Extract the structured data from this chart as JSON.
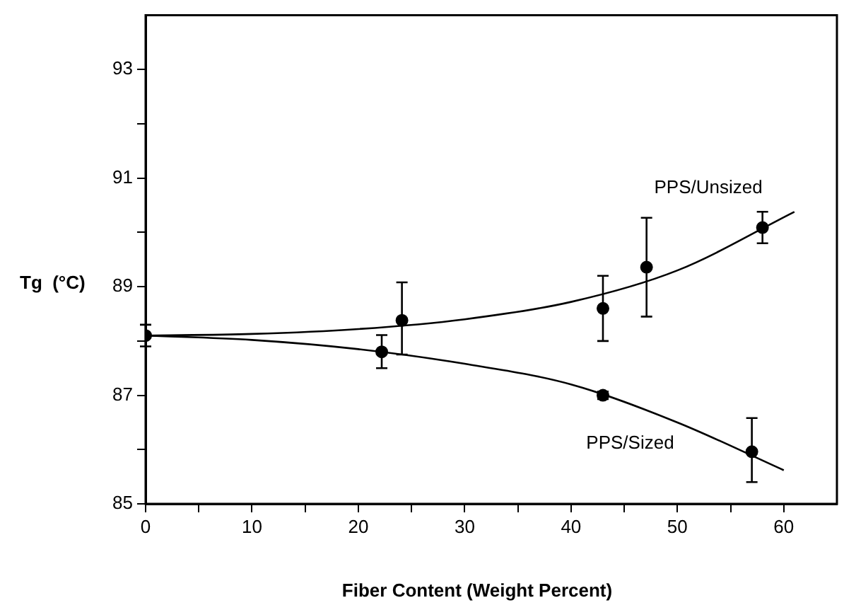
{
  "chart_data": {
    "type": "scatter",
    "xlabel": "Fiber Content (Weight Percent)",
    "ylabel": "Tg  (°C)",
    "xlim": [
      0,
      65
    ],
    "ylim": [
      85,
      94
    ],
    "xticks": [
      0,
      {
        "value": 5,
        "label": null
      },
      10,
      {
        "value": 15,
        "label": null
      },
      20,
      {
        "value": 25,
        "label": null
      },
      30,
      {
        "value": 35,
        "label": null
      },
      40,
      {
        "value": 45,
        "label": null
      },
      50,
      {
        "value": 55,
        "label": null
      },
      60
    ],
    "yticks": [
      85,
      {
        "value": 86,
        "label": null
      },
      87,
      {
        "value": 88,
        "label": null
      },
      89,
      {
        "value": 90,
        "label": null
      },
      91,
      {
        "value": 92,
        "label": null
      },
      93
    ],
    "grid": false,
    "legend": false,
    "marker": "circle",
    "series": [
      {
        "name": "PPS/Unsized",
        "color": "#000000",
        "x": [
          24.1,
          43,
          47.1,
          58
        ],
        "values": [
          88.38,
          88.6,
          89.36,
          90.09
        ],
        "errors": [
          [
            87.75,
            89.08
          ],
          [
            88.0,
            89.2
          ],
          [
            88.45,
            90.27
          ],
          [
            89.8,
            90.38
          ]
        ]
      },
      {
        "name": "PPS/Sized",
        "color": "#000000",
        "x": [
          0,
          22.2,
          43,
          57
        ],
        "values": [
          88.1,
          87.8,
          87.0,
          85.96
        ],
        "errors": [
          [
            87.9,
            88.3
          ],
          [
            87.5,
            88.11
          ],
          [
            86.93,
            87.07
          ],
          [
            85.4,
            86.58
          ]
        ]
      },
      {
        "type": "line",
        "color": "#000000",
        "marker": "none",
        "x": [
          0,
          10,
          20,
          30,
          40,
          50,
          61
        ],
        "values": [
          88.1,
          88.13,
          88.22,
          88.4,
          88.72,
          89.3,
          90.38
        ]
      },
      {
        "type": "line",
        "color": "#000000",
        "marker": "none",
        "x": [
          0,
          10,
          20,
          30,
          40,
          50,
          60
        ],
        "values": [
          88.1,
          88.02,
          87.85,
          87.58,
          87.2,
          86.5,
          85.62
        ]
      }
    ]
  }
}
